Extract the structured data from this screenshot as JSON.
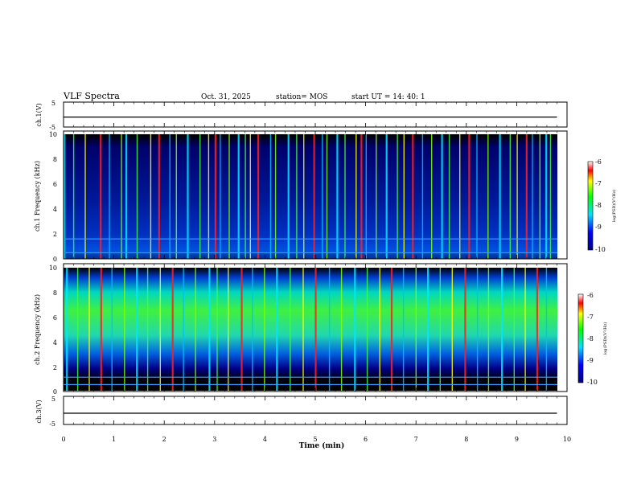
{
  "header": {
    "title": "VLF Spectra",
    "date": "Oct. 31, 2025",
    "station": "station= MOS",
    "start": "start  UT =   14: 40: 1"
  },
  "colors": {
    "spectrum_low": "#00008a",
    "spectrum_high": "#e00000",
    "line_blue": "#3aa0ff",
    "background": "#ffffff"
  },
  "chart_data": [
    {
      "type": "line",
      "panel": "ch1-voltage",
      "ylabel": "ch.1(V)",
      "ylim": [
        -5,
        5
      ],
      "yticks": [
        "5",
        "-5"
      ],
      "x": [
        0,
        1,
        2,
        3,
        4,
        5,
        6,
        7,
        8,
        9,
        9.8
      ],
      "values": [
        -1,
        -1,
        -1,
        -1,
        -1,
        -1,
        -1,
        -1,
        -1,
        -1,
        -1
      ]
    },
    {
      "type": "heatmap",
      "panel": "ch1-spectrogram",
      "ylabel": "ch.1\nFrequency (kHz)",
      "ylim": [
        0,
        10
      ],
      "yticks": [
        "10",
        "8",
        "6",
        "4",
        "2",
        "0"
      ],
      "colorbar": {
        "label": "log(PSD)(V²/Hz)",
        "range": [
          -10,
          -6
        ],
        "ticks": [
          "-6",
          "-7",
          "-8",
          "-9",
          "-10"
        ]
      },
      "spikes_min": [
        0.0,
        0.19,
        0.42,
        0.72,
        0.9,
        1.14,
        1.23,
        1.45,
        1.72,
        1.88,
        2.1,
        2.23,
        2.45,
        2.7,
        2.87,
        3.0,
        3.1,
        3.28,
        3.46,
        3.6,
        3.7,
        3.85,
        4.1,
        4.2,
        4.45,
        4.62,
        4.76,
        4.96,
        5.13,
        5.22,
        5.42,
        5.58,
        5.8,
        5.9,
        6.0,
        6.2,
        6.4,
        6.62,
        6.75,
        6.92,
        7.12,
        7.3,
        7.5,
        7.65,
        7.86,
        8.04,
        8.2,
        8.42,
        8.65,
        8.86,
        9.0,
        9.18,
        9.3,
        9.45,
        9.57,
        9.66
      ],
      "lines_khz": [
        0.5,
        1.6
      ]
    },
    {
      "type": "heatmap",
      "panel": "ch2-spectrogram",
      "ylabel": "ch.2\nFrequency (kHz)",
      "ylim": [
        0,
        10
      ],
      "yticks": [
        "10",
        "8",
        "6",
        "4",
        "2",
        "0"
      ],
      "colorbar": {
        "label": "log(PSD)(V²/Hz)",
        "range": [
          -10,
          -6
        ],
        "ticks": [
          "-6",
          "-7",
          "-8",
          "-9",
          "-10"
        ]
      },
      "spikes_min": [
        0.05,
        0.27,
        0.5,
        0.73,
        0.95,
        1.2,
        1.44,
        1.66,
        1.91,
        2.15,
        2.37,
        2.61,
        2.88,
        3.04,
        3.26,
        3.52,
        3.74,
        3.98,
        4.22,
        4.49,
        4.75,
        4.99,
        5.27,
        5.51,
        5.77,
        6.02,
        6.27,
        6.5,
        6.74,
        6.99,
        7.22,
        7.47,
        7.71,
        7.96,
        8.21,
        8.43,
        8.69,
        8.94,
        9.16,
        9.39,
        9.58
      ],
      "lines_khz": [
        0.5,
        1.1
      ]
    },
    {
      "type": "line",
      "panel": "ch3-voltage",
      "ylabel": "ch.3(V)",
      "ylim": [
        -5,
        5
      ],
      "yticks": [
        "5",
        "-5"
      ],
      "x": [
        0,
        1,
        2,
        3,
        4,
        5,
        6,
        7,
        8,
        9,
        9.8
      ],
      "values": [
        -1,
        -1,
        -1,
        -1,
        -1,
        -1,
        -1,
        -1,
        -1,
        -1,
        -1
      ]
    }
  ],
  "xaxis": {
    "label": "Time  (min)",
    "range": [
      0,
      10
    ],
    "ticks": [
      "0",
      "1",
      "2",
      "3",
      "4",
      "5",
      "6",
      "7",
      "8",
      "9",
      "10"
    ]
  }
}
